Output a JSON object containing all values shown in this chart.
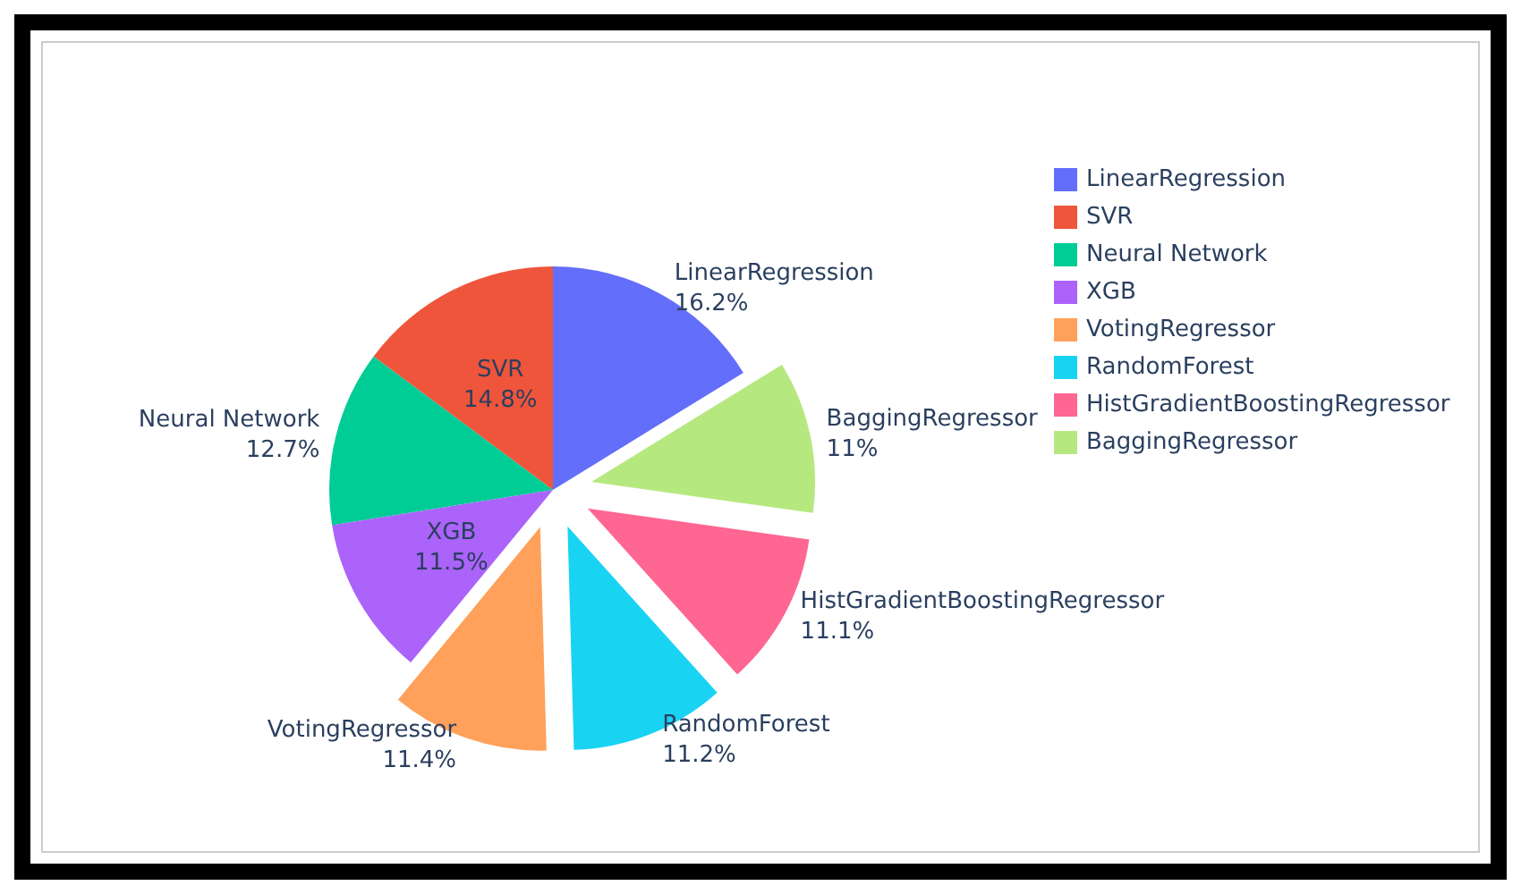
{
  "chart_data": {
    "type": "pie",
    "categories": [
      "LinearRegression",
      "SVR",
      "Neural Network",
      "XGB",
      "VotingRegressor",
      "RandomForest",
      "HistGradientBoostingRegressor",
      "BaggingRegressor"
    ],
    "values": [
      16.2,
      14.8,
      12.7,
      11.5,
      11.4,
      11.2,
      11.1,
      11
    ],
    "colors": [
      "#636efa",
      "#ef553b",
      "#00cc96",
      "#ab63fa",
      "#ffa15a",
      "#19d3f3",
      "#ff6692",
      "#b6e880"
    ],
    "value_labels": [
      "16.2%",
      "14.8%",
      "12.7%",
      "11.5%",
      "11.4%",
      "11.2%",
      "11.1%",
      "11%"
    ],
    "legend": "top right"
  }
}
